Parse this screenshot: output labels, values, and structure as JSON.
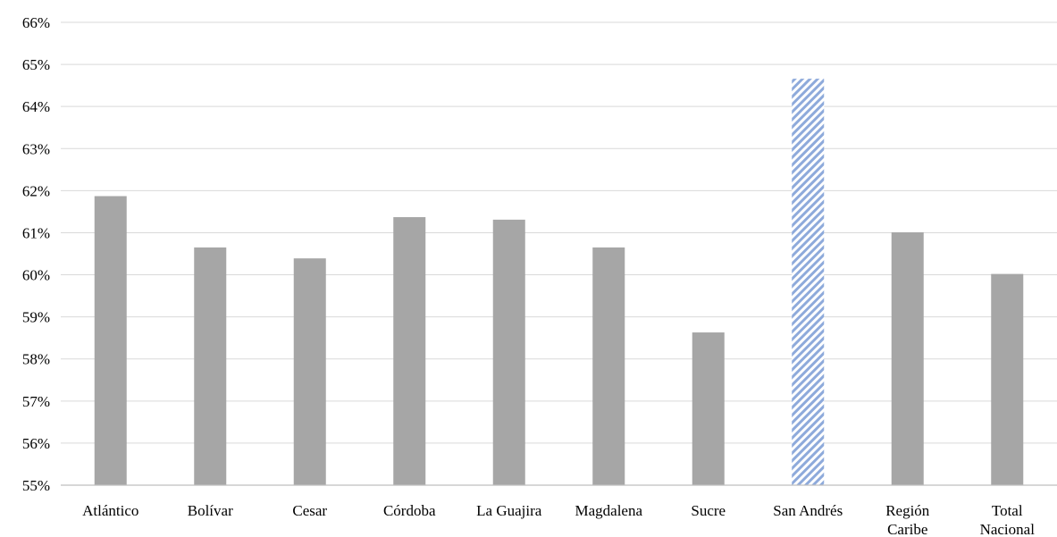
{
  "chart_data": {
    "type": "bar",
    "title": "",
    "xlabel": "",
    "ylabel": "",
    "ylim": [
      55,
      66
    ],
    "ytick_step": 1,
    "ytick_format": "{v}%",
    "grid": true,
    "legend": "none",
    "categories": [
      [
        "Atlántico"
      ],
      [
        "Bolívar"
      ],
      [
        "Cesar"
      ],
      [
        "Córdoba"
      ],
      [
        "La Guajira"
      ],
      [
        "Magdalena"
      ],
      [
        "Sucre"
      ],
      [
        "San Andrés"
      ],
      [
        "Región",
        "Caribe"
      ],
      [
        "Total",
        "Nacional"
      ]
    ],
    "values": [
      61.87,
      60.65,
      60.39,
      61.37,
      61.31,
      60.65,
      58.63,
      64.66,
      61.01,
      60.02
    ],
    "highlight_index": 7,
    "colors": {
      "bar": "#a6a6a6",
      "highlight_stripe": "#8eaadb",
      "highlight_bg": "#ffffff",
      "grid": "#d9d9d9",
      "axis": "#bfbfbf"
    }
  }
}
